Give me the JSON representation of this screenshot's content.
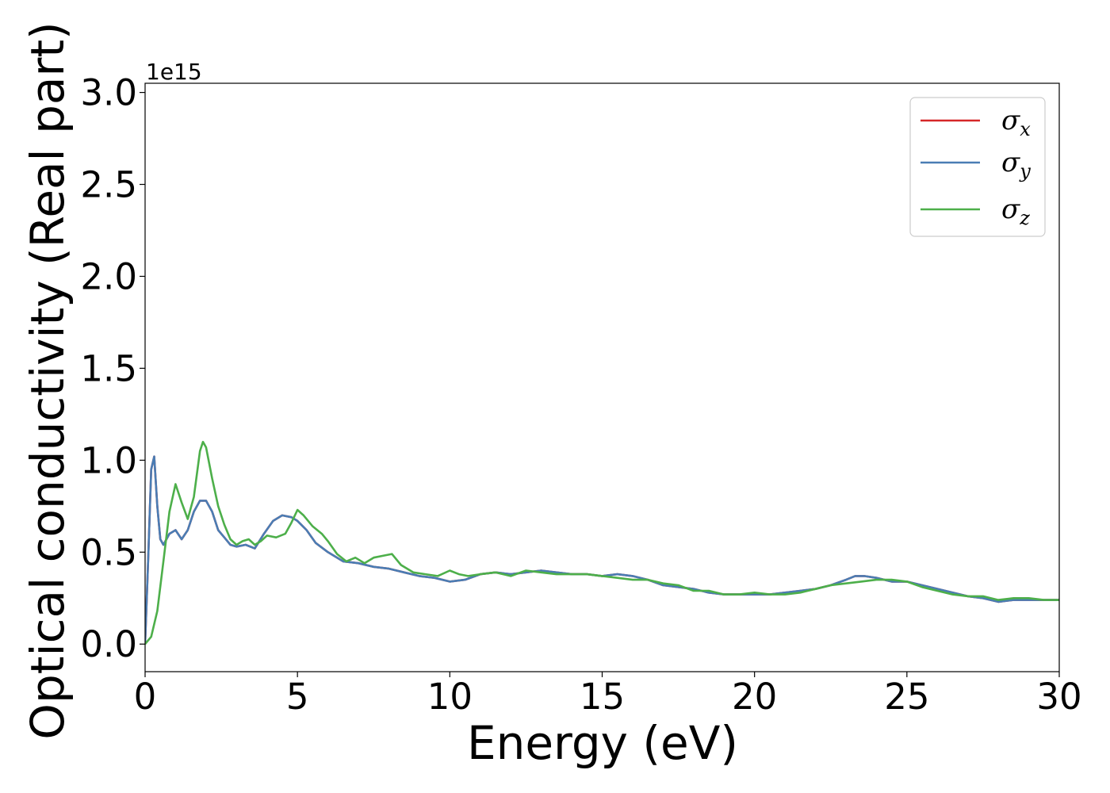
{
  "chart_data": {
    "type": "line",
    "title": "",
    "xlabel": "Energy (eV)",
    "ylabel": "Optical conductivity (Real part)",
    "y_offset_label": "1e15",
    "xlim": [
      0,
      30
    ],
    "ylim": [
      -0.15,
      3.05
    ],
    "xticks": [
      0,
      5,
      10,
      15,
      20,
      25,
      30
    ],
    "xtick_labels": [
      "0",
      "5",
      "10",
      "15",
      "20",
      "25",
      "30"
    ],
    "yticks": [
      0,
      0.5,
      1.0,
      1.5,
      2.0,
      2.5,
      3.0
    ],
    "ytick_labels": [
      "0.0",
      "0.5",
      "1.0",
      "1.5",
      "2.0",
      "2.5",
      "3.0"
    ],
    "grid": false,
    "legend_position": "top-right",
    "series": [
      {
        "name": "σx",
        "symbol": "σ",
        "sub": "x",
        "color": "#d62728",
        "x": [
          0,
          0.1,
          0.2,
          0.3,
          0.4,
          0.5,
          0.6,
          0.8,
          1.0,
          1.2,
          1.4,
          1.6,
          1.8,
          2.0,
          2.2,
          2.4,
          2.6,
          2.8,
          3.0,
          3.3,
          3.6,
          3.9,
          4.2,
          4.5,
          4.8,
          5.0,
          5.3,
          5.6,
          6.0,
          6.5,
          7.0,
          7.5,
          8.0,
          8.5,
          9.0,
          9.5,
          10.0,
          10.5,
          11.0,
          11.5,
          12.0,
          12.5,
          13.0,
          13.5,
          14.0,
          14.5,
          15.0,
          15.5,
          16.0,
          16.5,
          17.0,
          17.5,
          18.0,
          18.5,
          19.0,
          19.5,
          20.0,
          20.5,
          21.0,
          21.5,
          22.0,
          22.5,
          23.0,
          23.3,
          23.6,
          24.0,
          24.5,
          25.0,
          25.5,
          26.0,
          26.5,
          27.0,
          27.5,
          28.0,
          28.5,
          29.0,
          29.5,
          30.0
        ],
        "y": [
          0.0,
          0.45,
          0.95,
          1.02,
          0.75,
          0.57,
          0.54,
          0.6,
          0.62,
          0.57,
          0.62,
          0.72,
          0.78,
          0.78,
          0.72,
          0.62,
          0.58,
          0.54,
          0.53,
          0.54,
          0.52,
          0.6,
          0.67,
          0.7,
          0.69,
          0.67,
          0.62,
          0.55,
          0.5,
          0.45,
          0.44,
          0.42,
          0.41,
          0.39,
          0.37,
          0.36,
          0.34,
          0.35,
          0.38,
          0.39,
          0.38,
          0.39,
          0.4,
          0.39,
          0.38,
          0.38,
          0.37,
          0.38,
          0.37,
          0.35,
          0.32,
          0.31,
          0.3,
          0.28,
          0.27,
          0.27,
          0.27,
          0.27,
          0.28,
          0.29,
          0.3,
          0.32,
          0.35,
          0.37,
          0.37,
          0.36,
          0.34,
          0.34,
          0.32,
          0.3,
          0.28,
          0.26,
          0.25,
          0.23,
          0.24,
          0.24,
          0.24,
          0.24
        ]
      },
      {
        "name": "σy",
        "symbol": "σ",
        "sub": "y",
        "color": "#4a7db4",
        "x": [
          0,
          0.1,
          0.2,
          0.3,
          0.4,
          0.5,
          0.6,
          0.8,
          1.0,
          1.2,
          1.4,
          1.6,
          1.8,
          2.0,
          2.2,
          2.4,
          2.6,
          2.8,
          3.0,
          3.3,
          3.6,
          3.9,
          4.2,
          4.5,
          4.8,
          5.0,
          5.3,
          5.6,
          6.0,
          6.5,
          7.0,
          7.5,
          8.0,
          8.5,
          9.0,
          9.5,
          10.0,
          10.5,
          11.0,
          11.5,
          12.0,
          12.5,
          13.0,
          13.5,
          14.0,
          14.5,
          15.0,
          15.5,
          16.0,
          16.5,
          17.0,
          17.5,
          18.0,
          18.5,
          19.0,
          19.5,
          20.0,
          20.5,
          21.0,
          21.5,
          22.0,
          22.5,
          23.0,
          23.3,
          23.6,
          24.0,
          24.5,
          25.0,
          25.5,
          26.0,
          26.5,
          27.0,
          27.5,
          28.0,
          28.5,
          29.0,
          29.5,
          30.0
        ],
        "y": [
          0.0,
          0.45,
          0.95,
          1.02,
          0.75,
          0.57,
          0.54,
          0.6,
          0.62,
          0.57,
          0.62,
          0.72,
          0.78,
          0.78,
          0.72,
          0.62,
          0.58,
          0.54,
          0.53,
          0.54,
          0.52,
          0.6,
          0.67,
          0.7,
          0.69,
          0.67,
          0.62,
          0.55,
          0.5,
          0.45,
          0.44,
          0.42,
          0.41,
          0.39,
          0.37,
          0.36,
          0.34,
          0.35,
          0.38,
          0.39,
          0.38,
          0.39,
          0.4,
          0.39,
          0.38,
          0.38,
          0.37,
          0.38,
          0.37,
          0.35,
          0.32,
          0.31,
          0.3,
          0.28,
          0.27,
          0.27,
          0.27,
          0.27,
          0.28,
          0.29,
          0.3,
          0.32,
          0.35,
          0.37,
          0.37,
          0.36,
          0.34,
          0.34,
          0.32,
          0.3,
          0.28,
          0.26,
          0.25,
          0.23,
          0.24,
          0.24,
          0.24,
          0.24
        ]
      },
      {
        "name": "σz",
        "symbol": "σ",
        "sub": "z",
        "color": "#4daf4a",
        "x": [
          0,
          0.2,
          0.4,
          0.6,
          0.8,
          1.0,
          1.2,
          1.4,
          1.6,
          1.8,
          1.9,
          2.0,
          2.2,
          2.4,
          2.6,
          2.8,
          3.0,
          3.2,
          3.4,
          3.6,
          3.8,
          4.0,
          4.3,
          4.6,
          4.8,
          5.0,
          5.2,
          5.5,
          5.8,
          6.0,
          6.3,
          6.6,
          6.9,
          7.2,
          7.5,
          7.8,
          8.1,
          8.4,
          8.8,
          9.2,
          9.6,
          10.0,
          10.3,
          10.6,
          11.0,
          11.5,
          12.0,
          12.5,
          13.0,
          13.5,
          14.0,
          14.5,
          15.0,
          15.5,
          16.0,
          16.5,
          17.0,
          17.5,
          18.0,
          18.5,
          19.0,
          19.5,
          20.0,
          20.5,
          21.0,
          21.5,
          22.0,
          22.5,
          23.0,
          23.5,
          24.0,
          24.5,
          25.0,
          25.5,
          26.0,
          26.5,
          27.0,
          27.5,
          28.0,
          28.5,
          29.0,
          29.5,
          30.0
        ],
        "y": [
          0.0,
          0.04,
          0.18,
          0.45,
          0.72,
          0.87,
          0.77,
          0.68,
          0.8,
          1.05,
          1.1,
          1.07,
          0.9,
          0.75,
          0.65,
          0.57,
          0.54,
          0.56,
          0.57,
          0.54,
          0.56,
          0.59,
          0.58,
          0.6,
          0.66,
          0.73,
          0.7,
          0.64,
          0.6,
          0.56,
          0.49,
          0.45,
          0.47,
          0.44,
          0.47,
          0.48,
          0.49,
          0.43,
          0.39,
          0.38,
          0.37,
          0.4,
          0.38,
          0.37,
          0.38,
          0.39,
          0.37,
          0.4,
          0.39,
          0.38,
          0.38,
          0.38,
          0.37,
          0.36,
          0.35,
          0.35,
          0.33,
          0.32,
          0.29,
          0.29,
          0.27,
          0.27,
          0.28,
          0.27,
          0.27,
          0.28,
          0.3,
          0.32,
          0.33,
          0.34,
          0.35,
          0.35,
          0.34,
          0.31,
          0.29,
          0.27,
          0.26,
          0.26,
          0.24,
          0.25,
          0.25,
          0.24,
          0.24
        ]
      }
    ]
  }
}
